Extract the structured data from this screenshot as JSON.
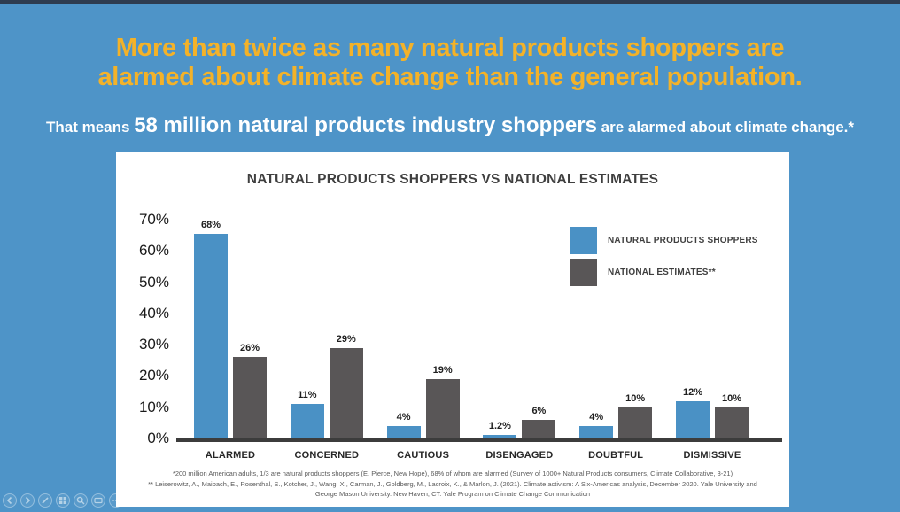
{
  "slide": {
    "title_line1": "More than twice as many natural products shoppers are",
    "title_line2": "alarmed about climate change than the general population.",
    "subtitle_prefix": "That means ",
    "subtitle_highlight": "58 million natural products industry shoppers",
    "subtitle_suffix": " are alarmed about climate change.*"
  },
  "chart_data": {
    "type": "bar",
    "title": "NATURAL PRODUCTS SHOPPERS VS NATIONAL ESTIMATES",
    "categories": [
      "ALARMED",
      "CONCERNED",
      "CAUTIOUS",
      "DISENGAGED",
      "DOUBTFUL",
      "DISMISSIVE"
    ],
    "series": [
      {
        "name": "NATURAL PRODUCTS SHOPPERS",
        "color": "#4A91C5",
        "values": [
          68,
          11,
          4,
          1.2,
          4,
          12
        ],
        "labels": [
          "68%",
          "11%",
          "4%",
          "1.2%",
          "4%",
          "12%"
        ]
      },
      {
        "name": "NATIONAL ESTIMATES**",
        "color": "#595657",
        "values": [
          26,
          29,
          19,
          6,
          10,
          10
        ],
        "labels": [
          "26%",
          "29%",
          "19%",
          "6%",
          "10%",
          "10%"
        ]
      }
    ],
    "y_ticks": {
      "values": [
        70,
        60,
        50,
        40,
        30,
        20,
        10,
        0
      ],
      "labels": [
        "70%",
        "60%",
        "50%",
        "40%",
        "30%",
        "20%",
        "10%",
        "0%"
      ]
    },
    "ylim": [
      0,
      70
    ],
    "grid": false,
    "legend_position": "top-right"
  },
  "footnotes": {
    "line1": "*200 million American adults, 1/3 are natural products shoppers (E. Pierce, New Hope), 68% of whom are alarmed (Survey of 1000+ Natural Products consumers, Climate Collaborative, 3-21)",
    "line2": "** Leiserowitz, A., Maibach, E., Rosenthal, S., Kotcher, J., Wang, X., Carman, J., Goldberg, M., Lacroix, K., & Marlon, J. (2021). Climate activism: A Six-Americas analysis, December 2020. Yale University and George Mason University. New Haven, CT: Yale Program on Climate Change Communication"
  },
  "colors": {
    "background": "#4E94C8",
    "top_bar": "#2E3C50",
    "title_text": "#F3B229",
    "subtitle_text": "#FFFFFF",
    "bar_blue": "#4A91C5",
    "bar_gray": "#595657"
  },
  "presenter_controls": {
    "icons": [
      "previous-slide",
      "next-slide",
      "pen",
      "see-all-slides",
      "zoom",
      "subtitles",
      "more-options"
    ]
  }
}
